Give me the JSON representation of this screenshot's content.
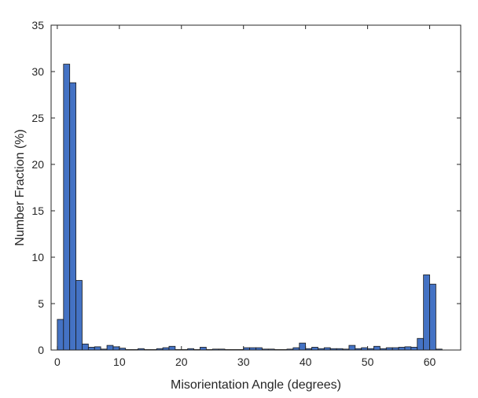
{
  "chart_data": {
    "type": "bar",
    "title": "",
    "xlabel": "Misorientation Angle (degrees)",
    "ylabel": "Number Fraction (%)",
    "xlim": [
      -1,
      65
    ],
    "ylim": [
      0,
      35
    ],
    "xticks": [
      0,
      10,
      20,
      30,
      40,
      50,
      60
    ],
    "yticks": [
      0,
      5,
      10,
      15,
      20,
      25,
      30,
      35
    ],
    "bin_width": 1,
    "bar_color": "#4472C4",
    "bar_edge_color": "#1a1a1a",
    "grid": false,
    "series": [
      {
        "x": [
          0,
          1,
          2,
          3,
          4,
          5,
          6,
          7,
          8,
          9,
          10,
          11,
          12,
          13,
          14,
          15,
          16,
          17,
          18,
          19,
          20,
          21,
          22,
          23,
          24,
          25,
          26,
          27,
          28,
          29,
          30,
          31,
          32,
          33,
          34,
          35,
          36,
          37,
          38,
          39,
          40,
          41,
          42,
          43,
          44,
          45,
          46,
          47,
          48,
          49,
          50,
          51,
          52,
          53,
          54,
          55,
          56,
          57,
          58,
          59,
          60,
          61
        ],
        "values": [
          3.3,
          30.8,
          28.8,
          7.5,
          0.65,
          0.3,
          0.35,
          0.1,
          0.5,
          0.35,
          0.2,
          0.05,
          0.05,
          0.15,
          0.05,
          0.05,
          0.15,
          0.25,
          0.4,
          0.05,
          0.05,
          0.15,
          0.05,
          0.3,
          0.05,
          0.1,
          0.1,
          0.05,
          0.05,
          0.05,
          0.25,
          0.25,
          0.25,
          0.1,
          0.1,
          0.05,
          0.05,
          0.1,
          0.25,
          0.75,
          0.15,
          0.3,
          0.15,
          0.25,
          0.15,
          0.15,
          0.1,
          0.5,
          0.15,
          0.25,
          0.15,
          0.4,
          0.15,
          0.25,
          0.25,
          0.3,
          0.35,
          0.3,
          1.25,
          8.1,
          7.1,
          0.1
        ]
      }
    ]
  }
}
